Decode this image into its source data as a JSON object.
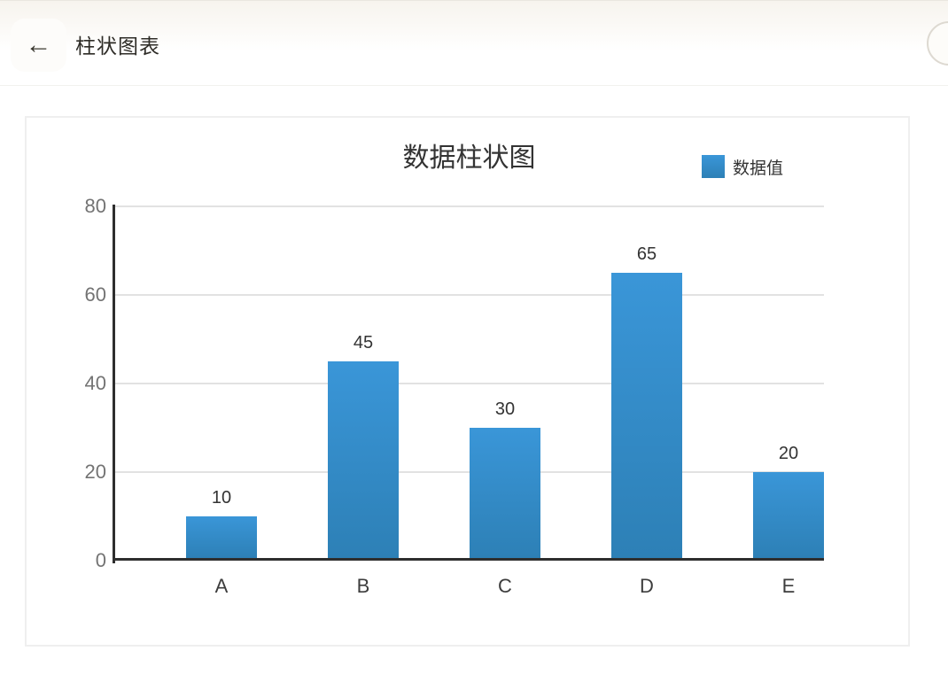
{
  "header": {
    "back_icon": "←",
    "title": "柱状图表"
  },
  "card": {
    "title": "数据柱状图",
    "legend": {
      "label": "数据值"
    }
  },
  "chart_data": {
    "type": "bar",
    "title": "数据柱状图",
    "categories": [
      "A",
      "B",
      "C",
      "D",
      "E"
    ],
    "values": [
      10,
      45,
      30,
      65,
      20
    ],
    "series": [
      {
        "name": "数据值",
        "values": [
          10,
          45,
          30,
          65,
          20
        ]
      }
    ],
    "xlabel": "",
    "ylabel": "",
    "ylim": [
      0,
      80
    ],
    "yticks": [
      0,
      20,
      40,
      60,
      80
    ],
    "grid": true,
    "legend_position": "top-right",
    "colors": {
      "bar_top": "#3a96d8",
      "bar_bottom": "#2d80b6",
      "axis": "#2e2e2e",
      "gridline": "#e2e2e2",
      "tick_label": "#737373",
      "value_label": "#333333"
    }
  }
}
